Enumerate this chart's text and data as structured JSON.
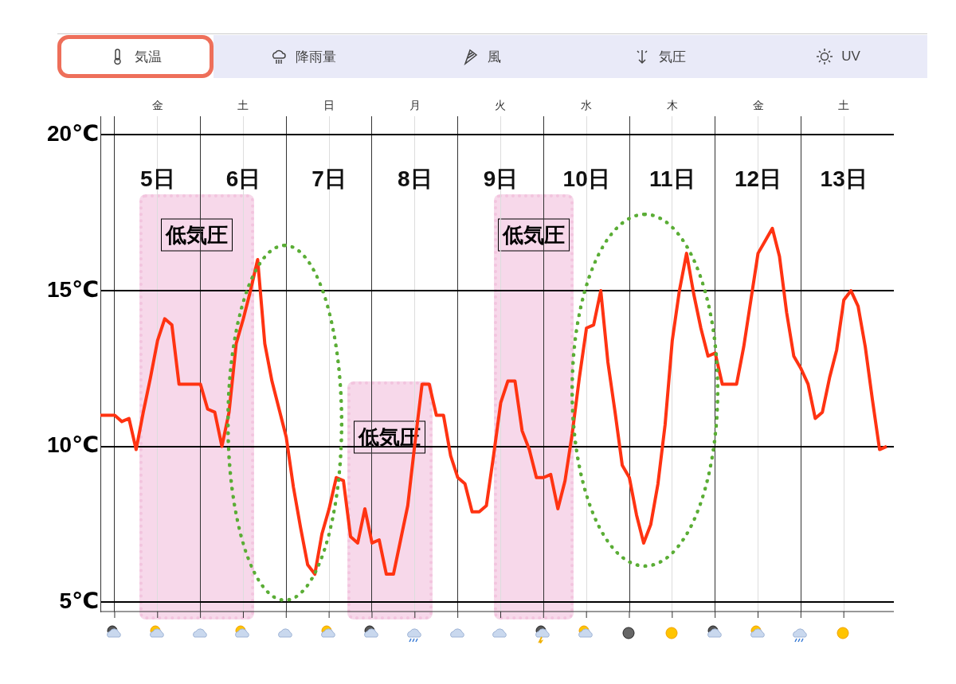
{
  "chart_data": {
    "type": "line",
    "categories": [
      null,
      null,
      null,
      null,
      null,
      null,
      null,
      null,
      "金",
      null,
      null,
      null,
      null,
      null,
      null,
      null,
      null,
      null,
      null,
      null,
      "土",
      null,
      null,
      null,
      null,
      null,
      null,
      null,
      null,
      null,
      null,
      null,
      "日",
      null,
      null,
      null,
      null,
      null,
      null,
      null,
      null,
      null,
      null,
      null,
      "月",
      null,
      null,
      null,
      null,
      null,
      null,
      null,
      null,
      null,
      null,
      null,
      "火",
      null,
      null,
      null,
      null,
      null,
      null,
      null,
      null,
      null,
      null,
      null,
      "水",
      null,
      null,
      null,
      null,
      null,
      null,
      null,
      null,
      null,
      null,
      null,
      "木",
      null,
      null,
      null,
      null,
      null,
      null,
      null,
      null,
      null,
      null,
      null,
      "金",
      null,
      null,
      null,
      null,
      null,
      null,
      null,
      null,
      null,
      null,
      null,
      "土",
      null,
      null,
      null,
      null,
      null,
      null,
      null
    ],
    "ylim": [
      4.7,
      20.6
    ],
    "yticks": [
      {
        "value": 5,
        "label": "5℃"
      },
      {
        "value": 10,
        "label": "10℃"
      },
      {
        "value": 15,
        "label": "15℃"
      },
      {
        "value": 20,
        "label": "20℃"
      }
    ],
    "grid": true,
    "legend": false,
    "marker": "none",
    "line_style": "solid",
    "series": [
      {
        "color": "#ff3312",
        "values": [
          11.0,
          11.0,
          11.0,
          10.8,
          10.9,
          9.9,
          11.1,
          12.2,
          13.4,
          14.1,
          13.9,
          12.0,
          12.0,
          12.0,
          12.0,
          11.2,
          11.1,
          10.0,
          11.1,
          13.3,
          14.1,
          15.0,
          16.0,
          13.3,
          12.1,
          11.2,
          10.3,
          8.7,
          7.4,
          6.2,
          5.9,
          7.2,
          8.0,
          9.0,
          8.9,
          7.1,
          6.9,
          8.0,
          6.9,
          7.0,
          5.9,
          5.9,
          7.0,
          8.1,
          10.1,
          12.0,
          12.0,
          11.0,
          11.0,
          9.7,
          9.0,
          8.8,
          7.9,
          7.9,
          8.1,
          9.7,
          11.4,
          12.1,
          12.1,
          10.5,
          9.9,
          9.0,
          9.0,
          9.1,
          8.0,
          8.9,
          10.4,
          12.2,
          13.8,
          13.9,
          15.0,
          12.7,
          11.1,
          9.4,
          9.0,
          7.8,
          6.9,
          7.5,
          8.8,
          10.7,
          13.4,
          15.0,
          16.2,
          14.9,
          13.8,
          12.9,
          13.0,
          12.0,
          12.0,
          12.0,
          13.2,
          14.7,
          16.2,
          16.6,
          17.0,
          16.1,
          14.3,
          12.9,
          12.5,
          12.0,
          10.9,
          11.1,
          12.2,
          13.1,
          14.7,
          15.0,
          14.5,
          13.2,
          11.5,
          9.9,
          10.0,
          null
        ]
      }
    ],
    "annotations": [
      "気温",
      "降雨量",
      "風",
      "気圧",
      "UV",
      "5日",
      "6日",
      "7日",
      "8日",
      "9日",
      "10日",
      "11日",
      "12日",
      "13日",
      "低気圧",
      "低気圧",
      "低気圧"
    ]
  }
}
